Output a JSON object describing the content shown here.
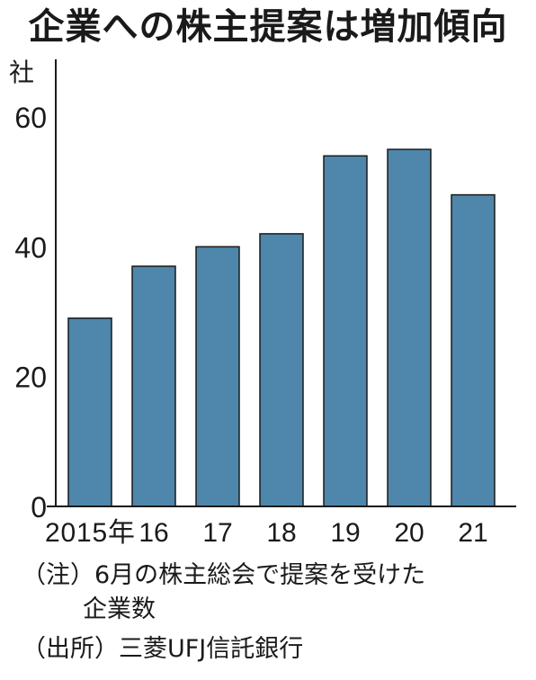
{
  "chart_data": {
    "type": "bar",
    "title": "企業への株主提案は増加傾向",
    "ylabel": "社",
    "ylim": [
      0,
      60
    ],
    "yticks": [
      0,
      20,
      40,
      60
    ],
    "categories": [
      "2015年",
      "16",
      "17",
      "18",
      "19",
      "20",
      "21"
    ],
    "values": [
      29,
      37,
      40,
      42,
      54,
      55,
      48
    ],
    "bar_color": "#4f86ab",
    "grid": false
  },
  "notes": {
    "note_line1": "（注）6月の株主総会で提案を受けた",
    "note_line2": "企業数",
    "source": "（出所）三菱UFJ信託銀行"
  }
}
